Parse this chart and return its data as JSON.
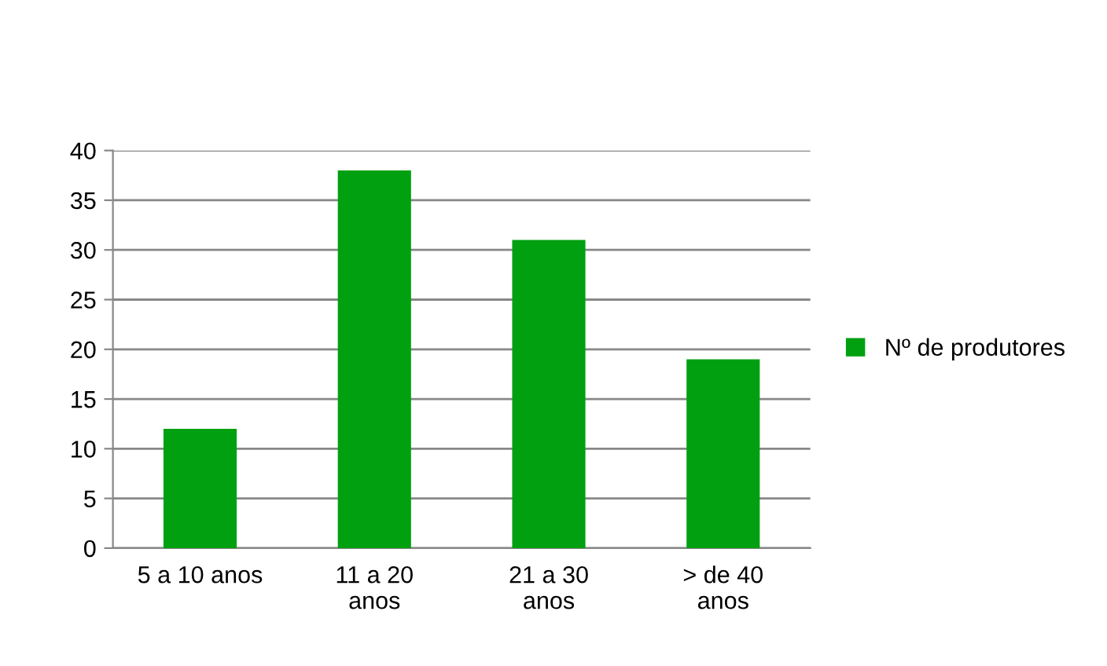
{
  "chart_data": {
    "type": "bar",
    "categories": [
      "5 a 10 anos",
      "11 a 20\nanos",
      "21 a 30\nanos",
      "> de 40\nanos"
    ],
    "series": [
      {
        "name": "Nº de produtores",
        "color": "#00a010",
        "values": [
          12,
          38,
          31,
          19
        ]
      }
    ],
    "ylim": [
      0,
      40
    ],
    "yticks": [
      0,
      5,
      10,
      15,
      20,
      25,
      30,
      35,
      40
    ],
    "grid": "y",
    "legend": "right"
  }
}
